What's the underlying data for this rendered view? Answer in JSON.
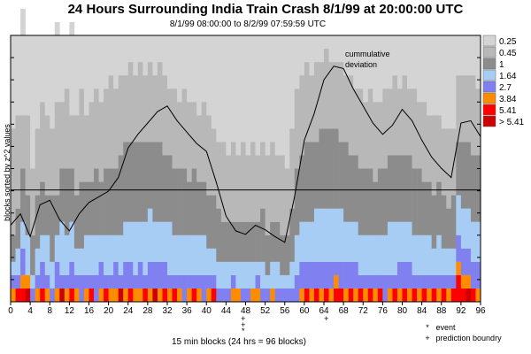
{
  "chart_data": {
    "type": "heatmap",
    "title": "24 Hours Surrounding India Train Crash 8/1/99 at 20:00:00 UTC",
    "subtitle": "8/1/99 08:00:00 to 8/2/99 07:59:59 UTC",
    "xlabel": "15 min blocks (24 hrs = 96 blocks)",
    "ylabel": "blocks sorted by z^2 values",
    "xlim": [
      0,
      96
    ],
    "x_ticks": [
      "0",
      "4",
      "8",
      "12",
      "16",
      "20",
      "24",
      "28",
      "32",
      "36",
      "40",
      "44",
      "48",
      "52",
      "56",
      "60",
      "64",
      "68",
      "72",
      "76",
      "80",
      "84",
      "88",
      "92",
      "96"
    ],
    "legend": {
      "placement": "right",
      "labels": [
        "0.25",
        "0.45",
        "1",
        "1.64",
        "2.7",
        "3.84",
        "5.41",
        "> 5.41"
      ],
      "colors": [
        "#d4d4d4",
        "#b8b8b8",
        "#8c8c8c",
        "#a7cdf5",
        "#8080f0",
        "#ff8c00",
        "#ff0000",
        "#cc0000"
      ]
    },
    "cumulative_label": "cummulative\ndeviation",
    "cumulative_deviation": [
      {
        "x": 0,
        "y": 20
      },
      {
        "x": 2,
        "y": 30
      },
      {
        "x": 4,
        "y": 10
      },
      {
        "x": 6,
        "y": 38
      },
      {
        "x": 8,
        "y": 42
      },
      {
        "x": 10,
        "y": 25
      },
      {
        "x": 12,
        "y": 15
      },
      {
        "x": 14,
        "y": 30
      },
      {
        "x": 16,
        "y": 40
      },
      {
        "x": 18,
        "y": 45
      },
      {
        "x": 20,
        "y": 50
      },
      {
        "x": 22,
        "y": 62
      },
      {
        "x": 24,
        "y": 88
      },
      {
        "x": 26,
        "y": 100
      },
      {
        "x": 28,
        "y": 110
      },
      {
        "x": 30,
        "y": 120
      },
      {
        "x": 32,
        "y": 125
      },
      {
        "x": 34,
        "y": 112
      },
      {
        "x": 36,
        "y": 102
      },
      {
        "x": 38,
        "y": 92
      },
      {
        "x": 40,
        "y": 85
      },
      {
        "x": 42,
        "y": 58
      },
      {
        "x": 44,
        "y": 28
      },
      {
        "x": 46,
        "y": 15
      },
      {
        "x": 48,
        "y": 12
      },
      {
        "x": 50,
        "y": 20
      },
      {
        "x": 52,
        "y": 16
      },
      {
        "x": 54,
        "y": 10
      },
      {
        "x": 56,
        "y": 5
      },
      {
        "x": 58,
        "y": 45
      },
      {
        "x": 60,
        "y": 95
      },
      {
        "x": 62,
        "y": 118
      },
      {
        "x": 64,
        "y": 148
      },
      {
        "x": 66,
        "y": 160
      },
      {
        "x": 68,
        "y": 158
      },
      {
        "x": 70,
        "y": 140
      },
      {
        "x": 72,
        "y": 125
      },
      {
        "x": 74,
        "y": 110
      },
      {
        "x": 76,
        "y": 100
      },
      {
        "x": 78,
        "y": 108
      },
      {
        "x": 80,
        "y": 122
      },
      {
        "x": 82,
        "y": 112
      },
      {
        "x": 84,
        "y": 95
      },
      {
        "x": 86,
        "y": 80
      },
      {
        "x": 88,
        "y": 70
      },
      {
        "x": 90,
        "y": 62
      },
      {
        "x": 92,
        "y": 110
      },
      {
        "x": 94,
        "y": 112
      },
      {
        "x": 96,
        "y": 98
      }
    ],
    "baseline": 0,
    "block_columns": [
      {
        "x": 0,
        "n": [
          6,
          8,
          2,
          1,
          1,
          1,
          0,
          0
        ]
      },
      {
        "x": 1,
        "n": [
          5,
          7,
          3,
          2,
          1,
          0,
          1,
          0
        ]
      },
      {
        "x": 2,
        "n": [
          8,
          4,
          4,
          2,
          2,
          1,
          1,
          0
        ]
      },
      {
        "x": 3,
        "n": [
          6,
          6,
          3,
          3,
          0,
          1,
          0,
          1
        ]
      },
      {
        "x": 4,
        "n": [
          9,
          5,
          3,
          1,
          1,
          0,
          0,
          0
        ]
      },
      {
        "x": 5,
        "n": [
          7,
          5,
          4,
          2,
          1,
          1,
          0,
          0
        ]
      },
      {
        "x": 6,
        "n": [
          5,
          6,
          4,
          2,
          2,
          0,
          1,
          0
        ]
      },
      {
        "x": 7,
        "n": [
          6,
          6,
          3,
          3,
          1,
          1,
          0,
          0
        ]
      },
      {
        "x": 8,
        "n": [
          7,
          5,
          5,
          2,
          1,
          0,
          0,
          0
        ]
      },
      {
        "x": 9,
        "n": [
          6,
          7,
          3,
          2,
          2,
          1,
          0,
          0
        ]
      },
      {
        "x": 10,
        "n": [
          5,
          5,
          4,
          4,
          1,
          0,
          0,
          1
        ]
      },
      {
        "x": 11,
        "n": [
          4,
          6,
          5,
          3,
          1,
          1,
          0,
          0
        ]
      },
      {
        "x": 12,
        "n": [
          7,
          4,
          4,
          3,
          2,
          0,
          1,
          0
        ]
      },
      {
        "x": 13,
        "n": [
          6,
          6,
          4,
          2,
          1,
          1,
          0,
          0
        ]
      },
      {
        "x": 14,
        "n": [
          4,
          7,
          5,
          2,
          2,
          0,
          0,
          0
        ]
      },
      {
        "x": 15,
        "n": [
          6,
          5,
          4,
          3,
          1,
          1,
          0,
          0
        ]
      },
      {
        "x": 16,
        "n": [
          5,
          6,
          4,
          3,
          1,
          0,
          1,
          0
        ]
      },
      {
        "x": 17,
        "n": [
          4,
          6,
          5,
          3,
          2,
          0,
          0,
          0
        ]
      },
      {
        "x": 18,
        "n": [
          5,
          6,
          4,
          2,
          2,
          1,
          0,
          0
        ]
      },
      {
        "x": 19,
        "n": [
          4,
          6,
          5,
          3,
          1,
          0,
          1,
          0
        ]
      },
      {
        "x": 20,
        "n": [
          3,
          7,
          5,
          3,
          1,
          1,
          0,
          0
        ]
      },
      {
        "x": 21,
        "n": [
          4,
          6,
          5,
          2,
          2,
          1,
          0,
          0
        ]
      },
      {
        "x": 22,
        "n": [
          3,
          6,
          6,
          3,
          1,
          0,
          0,
          1
        ]
      },
      {
        "x": 23,
        "n": [
          3,
          5,
          6,
          3,
          2,
          1,
          0,
          0
        ]
      },
      {
        "x": 24,
        "n": [
          2,
          6,
          6,
          3,
          2,
          0,
          1,
          0
        ]
      },
      {
        "x": 25,
        "n": [
          3,
          5,
          6,
          4,
          1,
          1,
          0,
          0
        ]
      },
      {
        "x": 26,
        "n": [
          2,
          6,
          6,
          3,
          2,
          1,
          0,
          0
        ]
      },
      {
        "x": 27,
        "n": [
          3,
          5,
          6,
          4,
          1,
          0,
          1,
          0
        ]
      },
      {
        "x": 28,
        "n": [
          2,
          6,
          5,
          4,
          2,
          1,
          0,
          0
        ]
      },
      {
        "x": 29,
        "n": [
          3,
          5,
          6,
          3,
          2,
          0,
          0,
          1
        ]
      },
      {
        "x": 30,
        "n": [
          2,
          6,
          6,
          3,
          2,
          1,
          0,
          0
        ]
      },
      {
        "x": 31,
        "n": [
          3,
          6,
          5,
          3,
          2,
          0,
          1,
          0
        ]
      },
      {
        "x": 32,
        "n": [
          4,
          5,
          5,
          4,
          1,
          1,
          0,
          0
        ]
      },
      {
        "x": 33,
        "n": [
          4,
          6,
          5,
          3,
          1,
          0,
          1,
          0
        ]
      },
      {
        "x": 34,
        "n": [
          5,
          5,
          5,
          3,
          1,
          1,
          0,
          0
        ]
      },
      {
        "x": 35,
        "n": [
          4,
          6,
          5,
          3,
          2,
          0,
          0,
          0
        ]
      },
      {
        "x": 36,
        "n": [
          5,
          6,
          4,
          3,
          1,
          1,
          0,
          0
        ]
      },
      {
        "x": 37,
        "n": [
          5,
          5,
          5,
          3,
          1,
          0,
          1,
          0
        ]
      },
      {
        "x": 38,
        "n": [
          6,
          5,
          4,
          3,
          1,
          1,
          0,
          0
        ]
      },
      {
        "x": 39,
        "n": [
          5,
          6,
          4,
          3,
          2,
          0,
          0,
          0
        ]
      },
      {
        "x": 40,
        "n": [
          6,
          6,
          4,
          2,
          1,
          1,
          0,
          0
        ]
      },
      {
        "x": 41,
        "n": [
          7,
          5,
          4,
          2,
          1,
          0,
          1,
          0
        ]
      },
      {
        "x": 42,
        "n": [
          8,
          5,
          4,
          2,
          1,
          0,
          0,
          0
        ]
      },
      {
        "x": 43,
        "n": [
          8,
          6,
          3,
          2,
          1,
          0,
          0,
          0
        ]
      },
      {
        "x": 44,
        "n": [
          9,
          5,
          3,
          2,
          1,
          0,
          0,
          0
        ]
      },
      {
        "x": 45,
        "n": [
          8,
          6,
          3,
          1,
          1,
          1,
          0,
          0
        ]
      },
      {
        "x": 46,
        "n": [
          9,
          5,
          3,
          2,
          0,
          1,
          0,
          0
        ]
      },
      {
        "x": 47,
        "n": [
          8,
          6,
          3,
          2,
          1,
          0,
          0,
          0
        ]
      },
      {
        "x": 48,
        "n": [
          9,
          5,
          3,
          2,
          1,
          0,
          0,
          0
        ]
      },
      {
        "x": 49,
        "n": [
          8,
          6,
          3,
          2,
          0,
          1,
          0,
          0
        ]
      },
      {
        "x": 50,
        "n": [
          9,
          5,
          3,
          1,
          1,
          1,
          0,
          0
        ]
      },
      {
        "x": 51,
        "n": [
          8,
          5,
          4,
          2,
          1,
          0,
          0,
          0
        ]
      },
      {
        "x": 52,
        "n": [
          9,
          6,
          3,
          1,
          1,
          0,
          0,
          0
        ]
      },
      {
        "x": 53,
        "n": [
          8,
          6,
          3,
          2,
          0,
          1,
          0,
          0
        ]
      },
      {
        "x": 54,
        "n": [
          9,
          5,
          3,
          2,
          1,
          0,
          0,
          0
        ]
      },
      {
        "x": 55,
        "n": [
          9,
          6,
          3,
          1,
          1,
          0,
          0,
          0
        ]
      },
      {
        "x": 56,
        "n": [
          10,
          5,
          3,
          1,
          1,
          0,
          0,
          0
        ]
      },
      {
        "x": 57,
        "n": [
          7,
          6,
          4,
          2,
          1,
          0,
          0,
          0
        ]
      },
      {
        "x": 58,
        "n": [
          4,
          6,
          5,
          3,
          2,
          0,
          0,
          0
        ]
      },
      {
        "x": 59,
        "n": [
          3,
          6,
          5,
          3,
          2,
          1,
          0,
          0
        ]
      },
      {
        "x": 60,
        "n": [
          2,
          6,
          6,
          3,
          2,
          0,
          1,
          0
        ]
      },
      {
        "x": 61,
        "n": [
          3,
          5,
          6,
          3,
          2,
          1,
          0,
          0
        ]
      },
      {
        "x": 62,
        "n": [
          2,
          6,
          5,
          4,
          2,
          0,
          1,
          0
        ]
      },
      {
        "x": 63,
        "n": [
          2,
          5,
          6,
          4,
          2,
          1,
          0,
          0
        ]
      },
      {
        "x": 64,
        "n": [
          1,
          6,
          6,
          4,
          2,
          0,
          1,
          0
        ]
      },
      {
        "x": 65,
        "n": [
          2,
          5,
          6,
          4,
          2,
          1,
          0,
          0
        ]
      },
      {
        "x": 66,
        "n": [
          2,
          5,
          6,
          4,
          1,
          1,
          1,
          0
        ]
      },
      {
        "x": 67,
        "n": [
          2,
          6,
          5,
          4,
          2,
          0,
          1,
          0
        ]
      },
      {
        "x": 68,
        "n": [
          3,
          5,
          6,
          3,
          2,
          1,
          0,
          0
        ]
      },
      {
        "x": 69,
        "n": [
          3,
          6,
          5,
          3,
          2,
          0,
          1,
          0
        ]
      },
      {
        "x": 70,
        "n": [
          4,
          5,
          5,
          3,
          2,
          1,
          0,
          0
        ]
      },
      {
        "x": 71,
        "n": [
          4,
          6,
          5,
          3,
          1,
          0,
          1,
          0
        ]
      },
      {
        "x": 72,
        "n": [
          5,
          5,
          5,
          3,
          1,
          1,
          0,
          0
        ]
      },
      {
        "x": 73,
        "n": [
          4,
          6,
          5,
          3,
          1,
          0,
          1,
          0
        ]
      },
      {
        "x": 74,
        "n": [
          5,
          6,
          4,
          3,
          1,
          1,
          0,
          0
        ]
      },
      {
        "x": 75,
        "n": [
          5,
          5,
          5,
          3,
          1,
          0,
          1,
          0
        ]
      },
      {
        "x": 76,
        "n": [
          4,
          6,
          5,
          3,
          2,
          0,
          0,
          0
        ]
      },
      {
        "x": 77,
        "n": [
          4,
          5,
          5,
          4,
          1,
          1,
          0,
          0
        ]
      },
      {
        "x": 78,
        "n": [
          3,
          6,
          5,
          4,
          1,
          0,
          1,
          0
        ]
      },
      {
        "x": 79,
        "n": [
          4,
          5,
          5,
          3,
          2,
          1,
          0,
          0
        ]
      },
      {
        "x": 80,
        "n": [
          3,
          6,
          5,
          3,
          2,
          0,
          1,
          0
        ]
      },
      {
        "x": 81,
        "n": [
          4,
          5,
          5,
          3,
          2,
          1,
          0,
          0
        ]
      },
      {
        "x": 82,
        "n": [
          4,
          6,
          5,
          3,
          1,
          0,
          1,
          0
        ]
      },
      {
        "x": 83,
        "n": [
          5,
          5,
          5,
          3,
          1,
          1,
          0,
          0
        ]
      },
      {
        "x": 84,
        "n": [
          5,
          6,
          4,
          3,
          1,
          0,
          1,
          0
        ]
      },
      {
        "x": 85,
        "n": [
          6,
          5,
          4,
          3,
          1,
          1,
          0,
          0
        ]
      },
      {
        "x": 86,
        "n": [
          6,
          6,
          4,
          2,
          1,
          0,
          1,
          0
        ]
      },
      {
        "x": 87,
        "n": [
          6,
          5,
          4,
          3,
          1,
          1,
          0,
          0
        ]
      },
      {
        "x": 88,
        "n": [
          7,
          5,
          4,
          2,
          1,
          0,
          1,
          0
        ]
      },
      {
        "x": 89,
        "n": [
          7,
          6,
          3,
          2,
          1,
          1,
          0,
          0
        ]
      },
      {
        "x": 90,
        "n": [
          7,
          5,
          4,
          2,
          1,
          0,
          1,
          0
        ]
      },
      {
        "x": 91,
        "n": [
          3,
          5,
          4,
          3,
          2,
          1,
          2,
          0
        ]
      },
      {
        "x": 92,
        "n": [
          3,
          5,
          5,
          3,
          2,
          1,
          1,
          0
        ]
      },
      {
        "x": 93,
        "n": [
          3,
          5,
          5,
          3,
          2,
          1,
          0,
          1
        ]
      },
      {
        "x": 94,
        "n": [
          3,
          6,
          5,
          3,
          2,
          0,
          1,
          0
        ]
      },
      {
        "x": 95,
        "n": [
          4,
          5,
          5,
          3,
          2,
          1,
          0,
          0
        ]
      }
    ],
    "event_marker": {
      "x": 48,
      "symbol": "*"
    },
    "prediction_boundaries": [
      {
        "x": 47,
        "symbol": "+"
      },
      {
        "x": 47,
        "symbol": "+"
      },
      {
        "x": 64,
        "symbol": "+"
      }
    ],
    "notes": [
      {
        "symbol": "*",
        "label": "event"
      },
      {
        "symbol": "+",
        "label": "prediction boundry"
      }
    ]
  }
}
